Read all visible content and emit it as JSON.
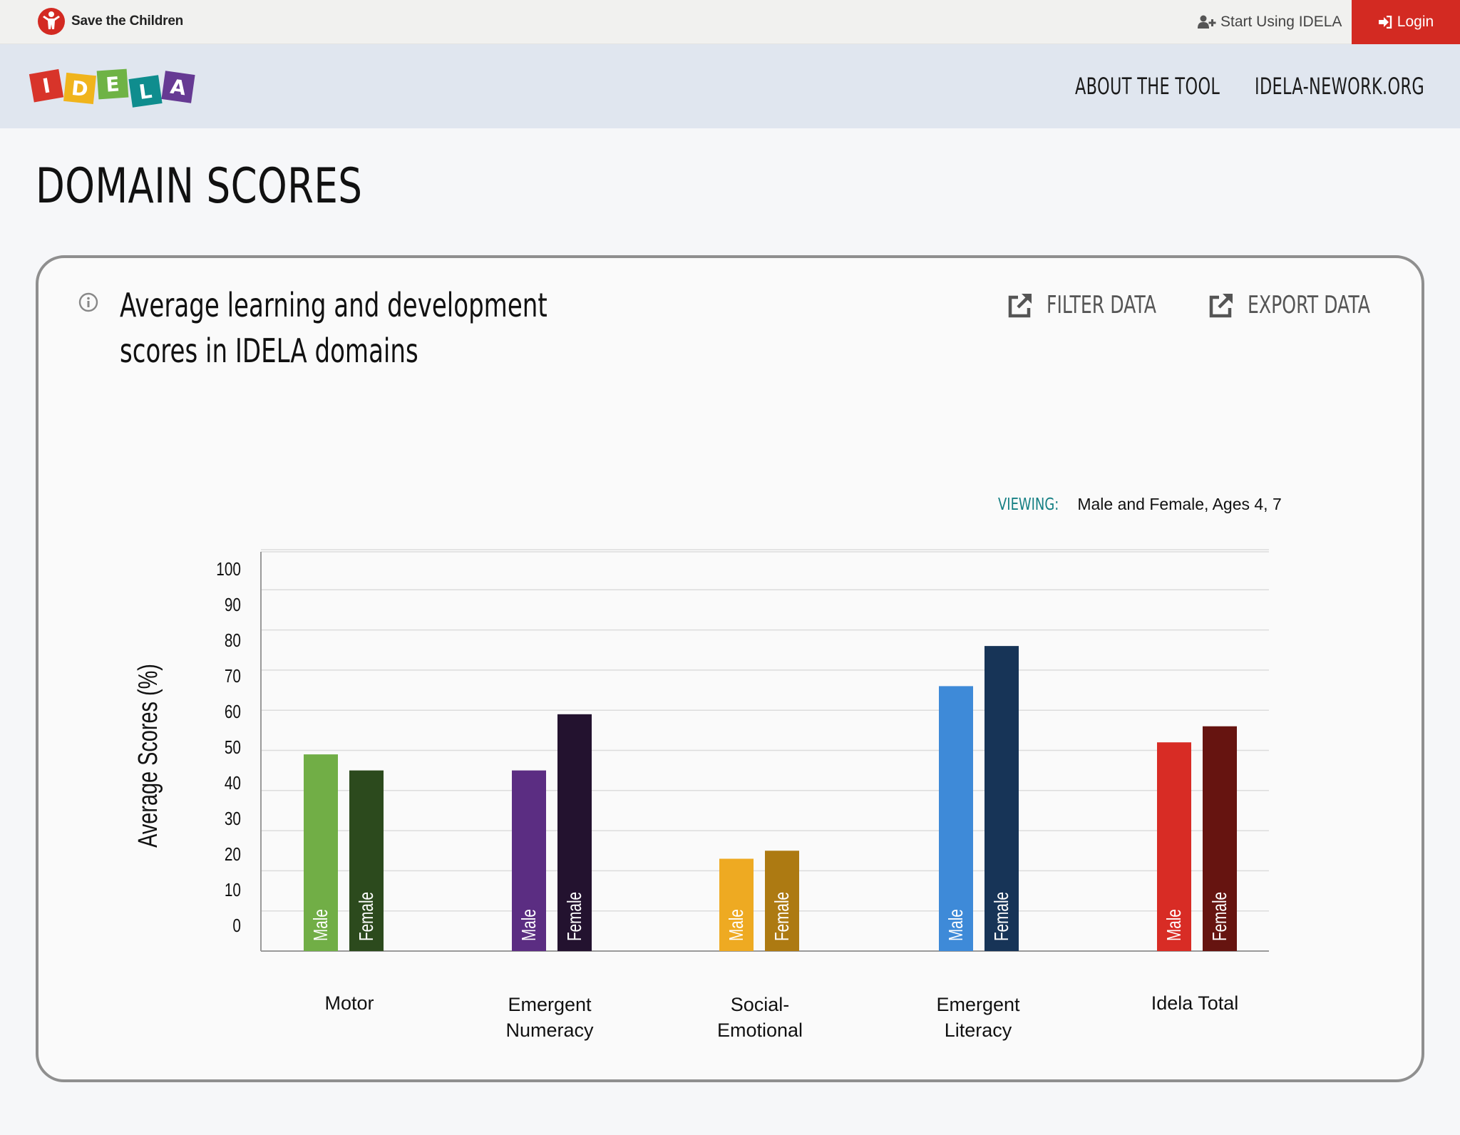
{
  "topbar": {
    "org_name": "Save the Children",
    "start_label": "Start Using IDELA",
    "login_label": "Login"
  },
  "nav": {
    "logo_letters": [
      "I",
      "D",
      "E",
      "L",
      "A"
    ],
    "about_label": "ABOUT THE TOOL",
    "network_label": "IDELA-NEWORK.ORG"
  },
  "page": {
    "title": "DOMAIN SCORES"
  },
  "card": {
    "title_line1": "Average learning and development",
    "title_line2": "scores in IDELA domains",
    "filter_label": "FILTER DATA",
    "export_label": "EXPORT DATA",
    "viewing_label": "VIEWING:",
    "viewing_value": "Male and Female, Ages 4, 7"
  },
  "colors": {
    "login_red": "#d32a22",
    "viewing_teal": "#147f83"
  },
  "icons": {
    "start": "user-plus-icon",
    "login": "sign-in-icon",
    "info": "info-icon",
    "filter": "external-link-icon",
    "export": "external-link-icon"
  },
  "chart_data": {
    "type": "bar",
    "ylabel": "Average Scores (%)",
    "ylim": [
      0,
      100
    ],
    "yticks": [
      0,
      10,
      20,
      30,
      40,
      50,
      60,
      70,
      80,
      90,
      100
    ],
    "grid": true,
    "categories": [
      "Motor",
      "Emergent Numeracy",
      "Social-Emotional",
      "Emergent Literacy",
      "Idela Total"
    ],
    "category_labels": [
      [
        "Motor"
      ],
      [
        "Emergent",
        "Numeracy"
      ],
      [
        "Social-",
        "Emotional"
      ],
      [
        "Emergent",
        "Literacy"
      ],
      [
        "Idela Total"
      ]
    ],
    "series": [
      {
        "name": "Male",
        "values": [
          49,
          45,
          23,
          66,
          52
        ],
        "colors": [
          "#71ae46",
          "#5b2d82",
          "#eeaa22",
          "#3e8ad8",
          "#d82c25"
        ]
      },
      {
        "name": "Female",
        "values": [
          45,
          59,
          25,
          76,
          56
        ],
        "colors": [
          "#2c4a1d",
          "#23122f",
          "#ad7a12",
          "#173457",
          "#661410"
        ]
      }
    ]
  }
}
